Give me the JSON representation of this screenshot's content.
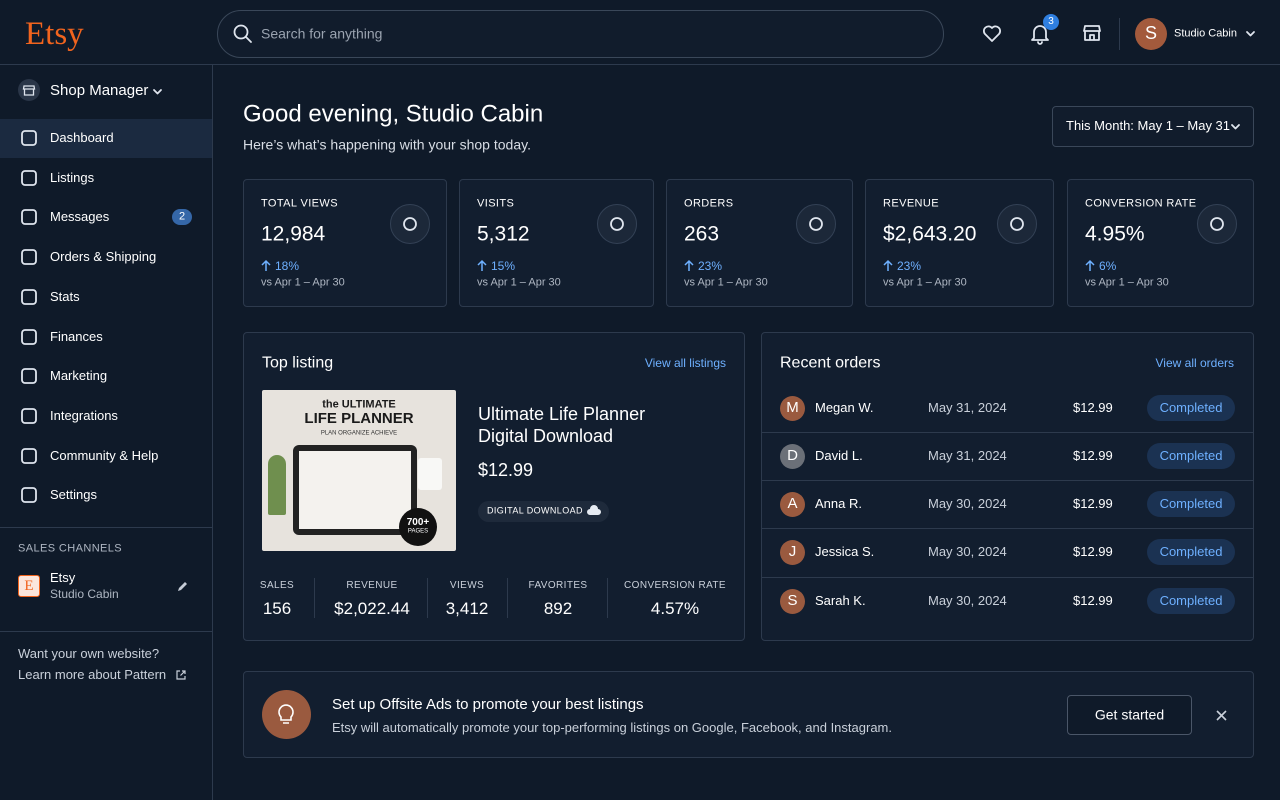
{
  "header": {
    "logo": "Etsy",
    "search_placeholder": "Search for anything",
    "notification_count": "3",
    "avatar_initial": "S",
    "shop_name": "Studio Cabin"
  },
  "sidebar": {
    "shop_manager": "Shop Manager",
    "nav": [
      {
        "label": "Dashboard"
      },
      {
        "label": "Listings"
      },
      {
        "label": "Messages",
        "badge": "2"
      },
      {
        "label": "Orders & Shipping"
      },
      {
        "label": "Stats"
      },
      {
        "label": "Finances"
      },
      {
        "label": "Marketing"
      },
      {
        "label": "Integrations"
      },
      {
        "label": "Community & Help"
      },
      {
        "label": "Settings"
      }
    ],
    "sales_channels_heading": "SALES CHANNELS",
    "channel": {
      "icon": "E",
      "name": "Etsy",
      "shop": "Studio Cabin"
    },
    "website_prompt": "Want your own website?",
    "pattern_link": "Learn more about Pattern"
  },
  "main": {
    "greeting": "Good evening, Studio Cabin",
    "subtitle": "Here’s what’s happening with your shop today.",
    "date_range": "This Month: May 1 – May 31",
    "stats": [
      {
        "label": "TOTAL VIEWS",
        "value": "12,984",
        "change": "18%",
        "comparison": "vs Apr 1 – Apr 30"
      },
      {
        "label": "VISITS",
        "value": "5,312",
        "change": "15%",
        "comparison": "vs Apr 1 – Apr 30"
      },
      {
        "label": "ORDERS",
        "value": "263",
        "change": "23%",
        "comparison": "vs Apr 1 – Apr 30"
      },
      {
        "label": "REVENUE",
        "value": "$2,643.20",
        "change": "23%",
        "comparison": "vs Apr 1 – Apr 30"
      },
      {
        "label": "CONVERSION RATE",
        "value": "4.95%",
        "change": "6%",
        "comparison": "vs Apr 1 – Apr 30"
      }
    ],
    "top_listing": {
      "title": "Top listing",
      "link": "View all listings",
      "image": {
        "line1": "the ULTIMATE",
        "line2": "LIFE PLANNER",
        "line3": "PLAN ORGANIZE ACHIEVE",
        "badge_line1": "700+",
        "badge_line2": "PAGES"
      },
      "name_line1": "Ultimate Life Planner",
      "name_line2": "Digital Download",
      "price": "$12.99",
      "tag": "DIGITAL DOWNLOAD",
      "metrics": [
        {
          "label": "SALES",
          "value": "156"
        },
        {
          "label": "REVENUE",
          "value": "$2,022.44"
        },
        {
          "label": "VIEWS",
          "value": "3,412"
        },
        {
          "label": "FAVORITES",
          "value": "892"
        },
        {
          "label": "CONVERSION RATE",
          "value": "4.57%"
        }
      ]
    },
    "recent_orders": {
      "title": "Recent orders",
      "link": "View all orders",
      "orders": [
        {
          "initial": "M",
          "name": "Megan W.",
          "date": "May 31, 2024",
          "amount": "$12.99",
          "status": "Completed"
        },
        {
          "initial": "D",
          "name": "David L.",
          "date": "May 31, 2024",
          "amount": "$12.99",
          "status": "Completed"
        },
        {
          "initial": "A",
          "name": "Anna R.",
          "date": "May 30, 2024",
          "amount": "$12.99",
          "status": "Completed"
        },
        {
          "initial": "J",
          "name": "Jessica S.",
          "date": "May 30, 2024",
          "amount": "$12.99",
          "status": "Completed"
        },
        {
          "initial": "S",
          "name": "Sarah K.",
          "date": "May 30, 2024",
          "amount": "$12.99",
          "status": "Completed"
        }
      ]
    },
    "promo": {
      "title": "Set up Offsite Ads to promote your best listings",
      "text": "Etsy will automatically promote your top-performing listings on Google, Facebook, and Instagram.",
      "button": "Get started"
    }
  }
}
